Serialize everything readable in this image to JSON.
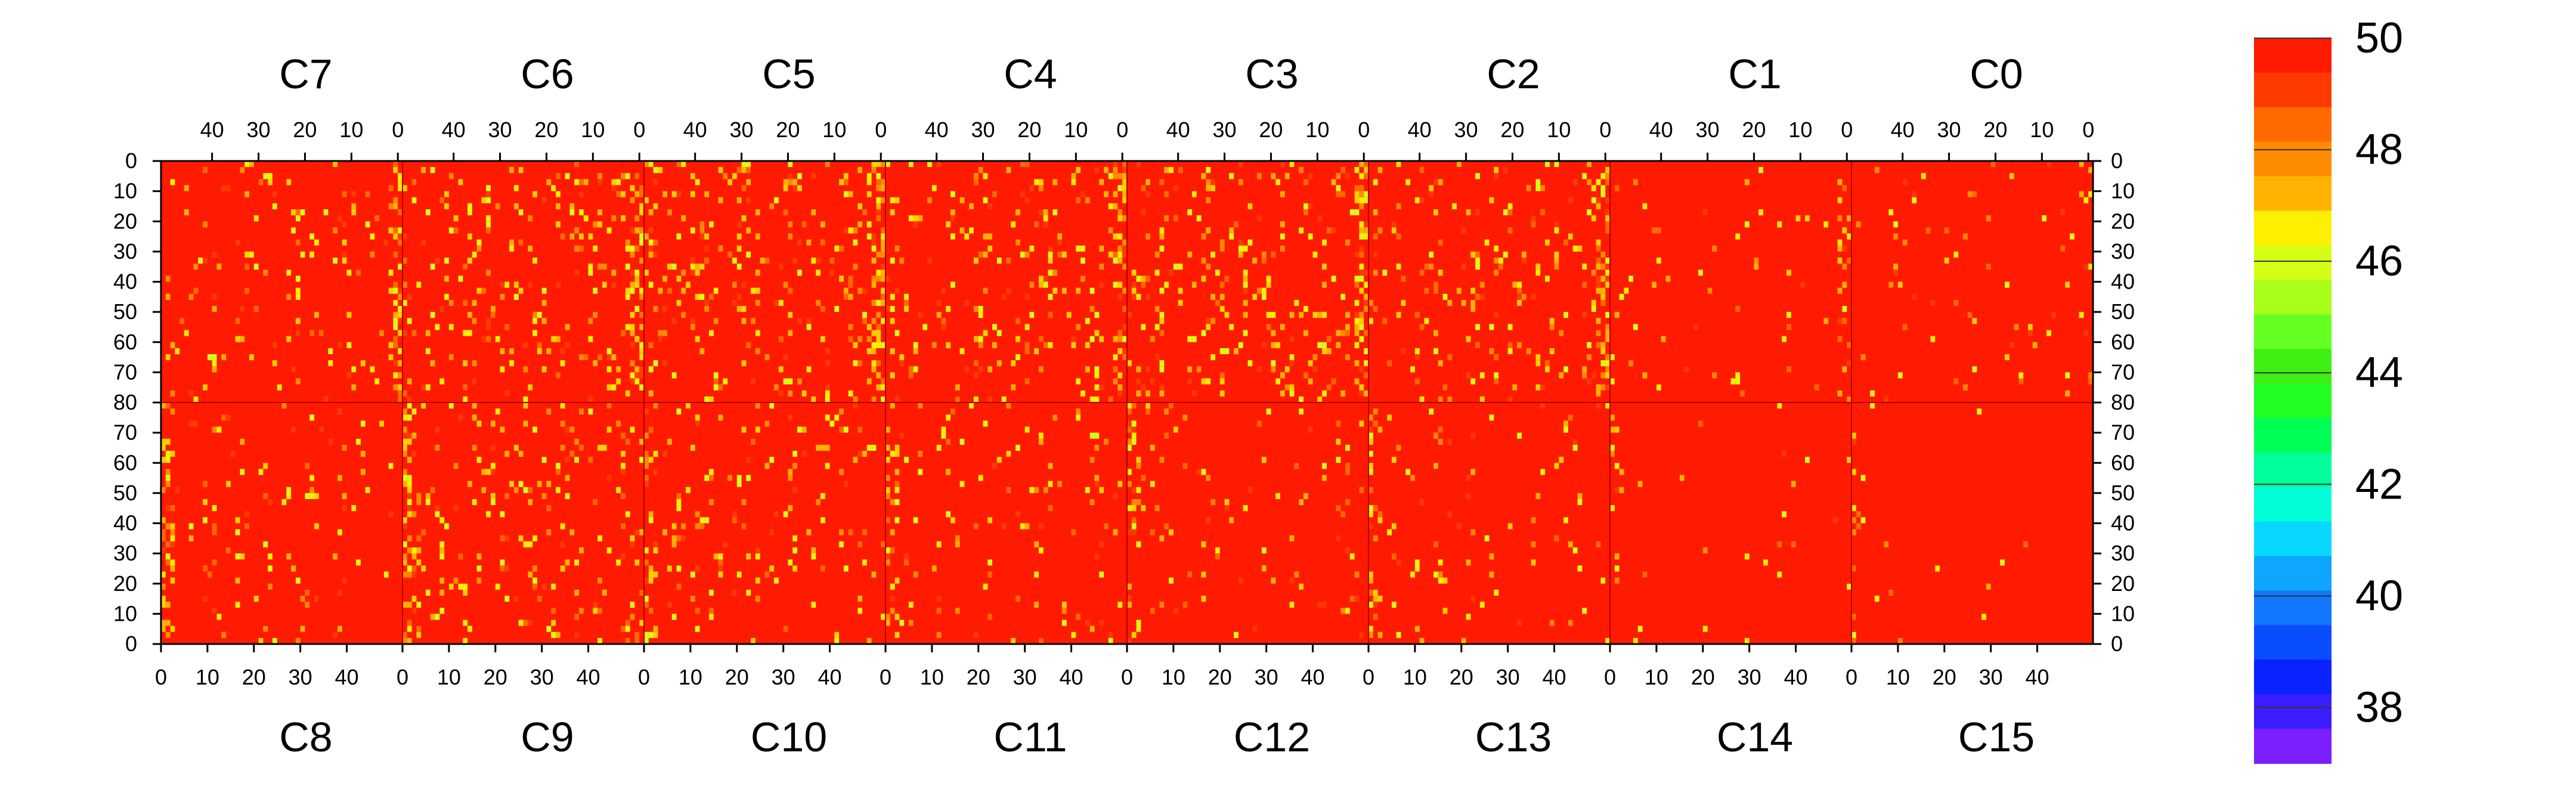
{
  "chart_data": {
    "type": "heatmap",
    "title": "",
    "xlabel": "",
    "ylabel": "",
    "color_scale": {
      "min": 37,
      "max": 50,
      "ticks": [
        "38",
        "40",
        "42",
        "44",
        "46",
        "48",
        "50"
      ],
      "colors": [
        "#7b1fff",
        "#3a1eff",
        "#0a22ff",
        "#0a4dff",
        "#1177ff",
        "#0ea6ff",
        "#08d8ff",
        "#00ffd8",
        "#00ff9a",
        "#00ff55",
        "#22ff22",
        "#3fef14",
        "#66ff22",
        "#a8ff1a",
        "#d4ff14",
        "#fff000",
        "#ffb300",
        "#ff8c00",
        "#ff6a00",
        "#ff3a00",
        "#ff1a00"
      ]
    },
    "top_row_chips": [
      "C7",
      "C6",
      "C5",
      "C4",
      "C3",
      "C2",
      "C1",
      "C0"
    ],
    "bottom_row_chips": [
      "C8",
      "C9",
      "C10",
      "C11",
      "C12",
      "C13",
      "C14",
      "C15"
    ],
    "top_x_ticks": [
      "40",
      "30",
      "20",
      "10",
      "0"
    ],
    "bottom_x_ticks": [
      "0",
      "10",
      "20",
      "30",
      "40"
    ],
    "top_y_ticks": [
      "0",
      "10",
      "20",
      "30",
      "40",
      "50",
      "60",
      "70",
      "80"
    ],
    "bottom_y_ticks": [
      "70",
      "60",
      "50",
      "40",
      "30",
      "20",
      "10",
      "0"
    ],
    "chip_columns": 52,
    "chip_rows": 80,
    "background_value": 50,
    "typical_min_value": 47,
    "hot_columns_note": "Lower values (yellow/orange, ~47-49) concentrate at chip edges near column 0; most pixels at 50 (red)"
  }
}
